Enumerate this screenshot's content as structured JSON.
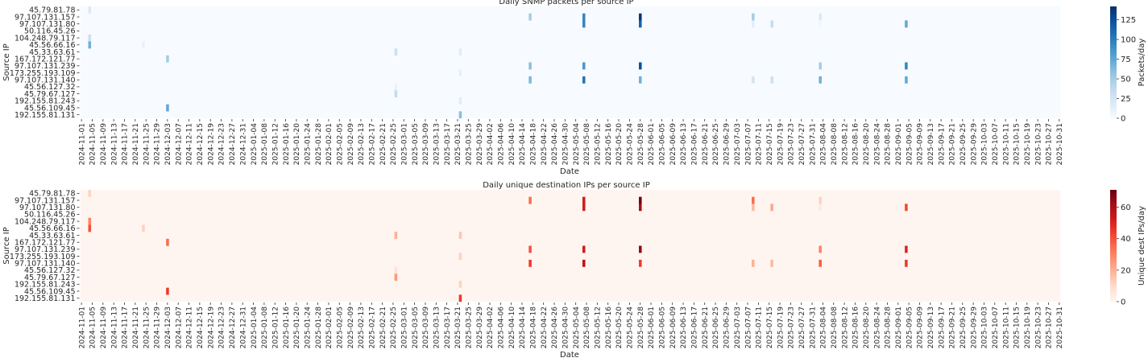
{
  "x_tick_labels": [
    "2024-11-01",
    "2024-11-05",
    "2024-11-09",
    "2024-11-13",
    "2024-11-17",
    "2024-11-21",
    "2024-11-25",
    "2024-11-29",
    "2024-12-03",
    "2024-12-07",
    "2024-12-11",
    "2024-12-15",
    "2024-12-19",
    "2024-12-23",
    "2024-12-27",
    "2024-12-31",
    "2025-01-04",
    "2025-01-08",
    "2025-01-12",
    "2025-01-16",
    "2025-01-20",
    "2025-01-24",
    "2025-01-28",
    "2025-02-01",
    "2025-02-05",
    "2025-02-09",
    "2025-02-13",
    "2025-02-17",
    "2025-02-21",
    "2025-02-25",
    "2025-03-01",
    "2025-03-05",
    "2025-03-09",
    "2025-03-13",
    "2025-03-17",
    "2025-03-21",
    "2025-03-25",
    "2025-03-29",
    "2025-04-02",
    "2025-04-06",
    "2025-04-10",
    "2025-04-14",
    "2025-04-18",
    "2025-04-22",
    "2025-04-26",
    "2025-04-30",
    "2025-05-04",
    "2025-05-08",
    "2025-05-12",
    "2025-05-16",
    "2025-05-20",
    "2025-05-24",
    "2025-05-28",
    "2025-06-01",
    "2025-06-05",
    "2025-06-09",
    "2025-06-13",
    "2025-06-17",
    "2025-06-21",
    "2025-06-25",
    "2025-06-29",
    "2025-07-03",
    "2025-07-07",
    "2025-07-11",
    "2025-07-15",
    "2025-07-19",
    "2025-07-23",
    "2025-07-27",
    "2025-07-31",
    "2025-08-04",
    "2025-08-08",
    "2025-08-12",
    "2025-08-16",
    "2025-08-20",
    "2025-08-24",
    "2025-08-28",
    "2025-09-01",
    "2025-09-05",
    "2025-09-09",
    "2025-09-13",
    "2025-09-17",
    "2025-09-21",
    "2025-09-25",
    "2025-09-29",
    "2025-10-03",
    "2025-10-07",
    "2025-10-11",
    "2025-10-15",
    "2025-10-19",
    "2025-10-23",
    "2025-10-27",
    "2025-10-31"
  ],
  "chart_data": [
    {
      "type": "heatmap",
      "title": "Daily SNMP packets per source IP",
      "xlabel": "Date",
      "ylabel": "Source IP",
      "x_range": [
        "2024-11-01",
        "2025-10-31"
      ],
      "rows": [
        "45.79.81.78",
        "97.107.131.157",
        "97.107.131.80",
        "50.116.45.26",
        "104.248.79.117",
        "45.56.66.16",
        "45.33.63.61",
        "167.172.121.77",
        "97.107.131.239",
        "173.255.193.109",
        "97.107.131.140",
        "45.56.127.32",
        "45.79.67.127",
        "192.155.81.243",
        "45.56.109.45",
        "192.155.81.131"
      ],
      "colormap": "Blues",
      "colormap_stops": [
        "#f7fbff",
        "#deebf7",
        "#c6dbef",
        "#9ecae1",
        "#6baed6",
        "#4292c6",
        "#2171b5",
        "#08519c",
        "#08306b"
      ],
      "colorbar": {
        "label": "Packets/day",
        "range": [
          0,
          142
        ],
        "ticks": [
          "0",
          "25",
          "50",
          "75",
          "100",
          "125"
        ]
      },
      "default_value": 0,
      "cells": [
        [
          "2024-11-04",
          "45.79.81.78",
          20
        ],
        [
          "2024-11-04",
          "104.248.79.117",
          30
        ],
        [
          "2024-11-04",
          "45.56.66.16",
          70
        ],
        [
          "2024-11-24",
          "45.56.66.16",
          10
        ],
        [
          "2024-12-03",
          "167.172.121.77",
          50
        ],
        [
          "2024-12-03",
          "45.56.109.45",
          75
        ],
        [
          "2025-02-26",
          "45.33.63.61",
          30
        ],
        [
          "2025-02-26",
          "45.56.127.32",
          10
        ],
        [
          "2025-02-26",
          "45.79.67.127",
          35
        ],
        [
          "2025-03-22",
          "45.33.63.61",
          15
        ],
        [
          "2025-03-22",
          "173.255.193.109",
          12
        ],
        [
          "2025-03-22",
          "192.155.81.243",
          15
        ],
        [
          "2025-03-22",
          "192.155.81.131",
          60
        ],
        [
          "2025-04-17",
          "97.107.131.157",
          50
        ],
        [
          "2025-04-17",
          "97.107.131.239",
          60
        ],
        [
          "2025-04-17",
          "97.107.131.140",
          65
        ],
        [
          "2025-05-07",
          "97.107.131.157",
          95
        ],
        [
          "2025-05-07",
          "97.107.131.80",
          95
        ],
        [
          "2025-05-07",
          "97.107.131.239",
          85
        ],
        [
          "2025-05-07",
          "97.107.131.140",
          105
        ],
        [
          "2025-05-28",
          "97.107.131.157",
          140
        ],
        [
          "2025-05-28",
          "97.107.131.80",
          115
        ],
        [
          "2025-05-28",
          "97.107.131.239",
          125
        ],
        [
          "2025-05-28",
          "97.107.131.140",
          70
        ],
        [
          "2025-07-09",
          "97.107.131.157",
          50
        ],
        [
          "2025-07-09",
          "97.107.131.80",
          15
        ],
        [
          "2025-07-09",
          "97.107.131.140",
          25
        ],
        [
          "2025-07-16",
          "97.107.131.80",
          35
        ],
        [
          "2025-07-16",
          "97.107.131.140",
          30
        ],
        [
          "2025-08-03",
          "97.107.131.157",
          20
        ],
        [
          "2025-08-03",
          "97.107.131.80",
          5
        ],
        [
          "2025-08-03",
          "97.107.131.239",
          50
        ],
        [
          "2025-08-03",
          "97.107.131.140",
          70
        ],
        [
          "2025-09-04",
          "97.107.131.80",
          75
        ],
        [
          "2025-09-04",
          "97.107.131.239",
          95
        ],
        [
          "2025-09-04",
          "97.107.131.140",
          75
        ]
      ]
    },
    {
      "type": "heatmap",
      "title": "Daily unique destination IPs per source IP",
      "xlabel": "Date",
      "ylabel": "Source IP",
      "x_range": [
        "2024-11-01",
        "2025-10-31"
      ],
      "rows": [
        "45.79.81.78",
        "97.107.131.157",
        "97.107.131.80",
        "50.116.45.26",
        "104.248.79.117",
        "45.56.66.16",
        "45.33.63.61",
        "167.172.121.77",
        "97.107.131.239",
        "173.255.193.109",
        "97.107.131.140",
        "45.56.127.32",
        "45.79.67.127",
        "192.155.81.243",
        "45.56.109.45",
        "192.155.81.131"
      ],
      "colormap": "Reds",
      "colormap_stops": [
        "#fff5f0",
        "#fee0d2",
        "#fcbba1",
        "#fc9272",
        "#fb6a4a",
        "#ef3b2c",
        "#cb181d",
        "#a50f15",
        "#67000d"
      ],
      "colorbar": {
        "label": "Unique dest IPs/day",
        "range": [
          0,
          71
        ],
        "ticks": [
          "0",
          "20",
          "40",
          "60"
        ]
      },
      "default_value": 0,
      "cells": [
        [
          "2024-11-04",
          "45.79.81.78",
          12
        ],
        [
          "2024-11-04",
          "104.248.79.117",
          30
        ],
        [
          "2024-11-04",
          "45.56.66.16",
          40
        ],
        [
          "2024-11-24",
          "45.56.66.16",
          12
        ],
        [
          "2024-12-03",
          "167.172.121.77",
          35
        ],
        [
          "2024-12-03",
          "45.56.109.45",
          45
        ],
        [
          "2025-02-26",
          "45.33.63.61",
          20
        ],
        [
          "2025-02-26",
          "45.56.127.32",
          8
        ],
        [
          "2025-02-26",
          "45.79.67.127",
          25
        ],
        [
          "2025-03-22",
          "45.33.63.61",
          15
        ],
        [
          "2025-03-22",
          "173.255.193.109",
          12
        ],
        [
          "2025-03-22",
          "192.155.81.243",
          12
        ],
        [
          "2025-03-22",
          "192.155.81.131",
          45
        ],
        [
          "2025-04-17",
          "97.107.131.157",
          35
        ],
        [
          "2025-04-17",
          "97.107.131.239",
          40
        ],
        [
          "2025-04-17",
          "97.107.131.140",
          45
        ],
        [
          "2025-05-07",
          "97.107.131.157",
          52
        ],
        [
          "2025-05-07",
          "97.107.131.80",
          52
        ],
        [
          "2025-05-07",
          "97.107.131.239",
          52
        ],
        [
          "2025-05-07",
          "97.107.131.140",
          57
        ],
        [
          "2025-05-28",
          "97.107.131.157",
          70
        ],
        [
          "2025-05-28",
          "97.107.131.80",
          62
        ],
        [
          "2025-05-28",
          "97.107.131.239",
          65
        ],
        [
          "2025-05-28",
          "97.107.131.140",
          45
        ],
        [
          "2025-07-09",
          "97.107.131.157",
          35
        ],
        [
          "2025-07-09",
          "97.107.131.80",
          18
        ],
        [
          "2025-07-09",
          "97.107.131.140",
          20
        ],
        [
          "2025-07-16",
          "97.107.131.80",
          22
        ],
        [
          "2025-07-16",
          "97.107.131.140",
          18
        ],
        [
          "2025-08-03",
          "97.107.131.157",
          12
        ],
        [
          "2025-08-03",
          "97.107.131.80",
          5
        ],
        [
          "2025-08-03",
          "97.107.131.239",
          30
        ],
        [
          "2025-08-03",
          "97.107.131.140",
          38
        ],
        [
          "2025-09-04",
          "97.107.131.80",
          42
        ],
        [
          "2025-09-04",
          "97.107.131.239",
          50
        ],
        [
          "2025-09-04",
          "97.107.131.140",
          45
        ]
      ]
    }
  ]
}
